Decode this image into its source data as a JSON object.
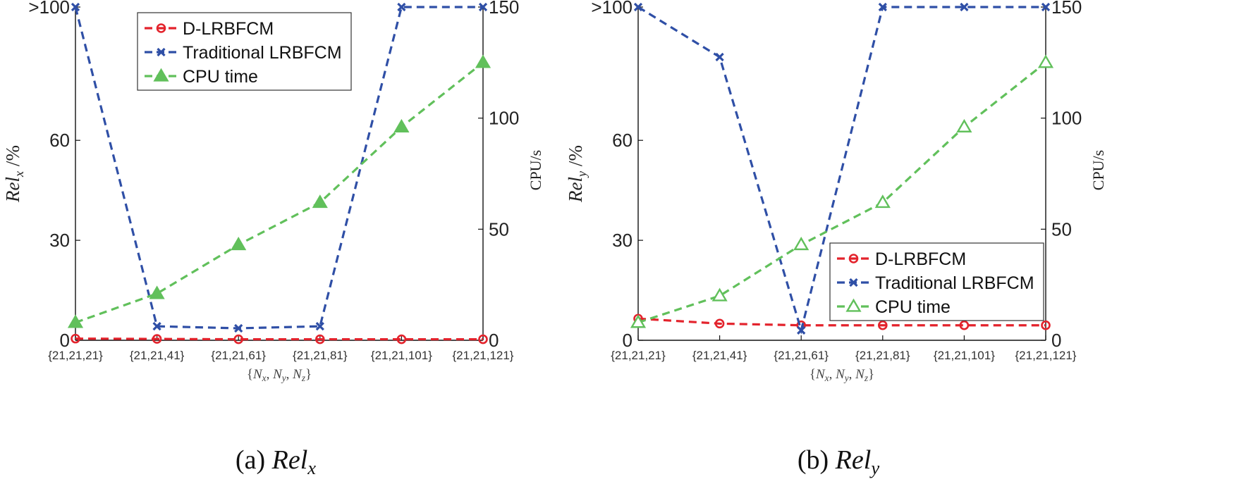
{
  "chart_data": [
    {
      "type": "line",
      "categories": [
        "{21,21,21}",
        "{21,21,41}",
        "{21,21,61}",
        "{21,21,81}",
        "{21,21,101}",
        "{21,21,121}"
      ],
      "xlabel": "{N_x, N_y, N_z}",
      "ylabel": "Rel_x /%",
      "y2label": "CPU/s",
      "ylim": [
        0,
        100
      ],
      "y_ticks": [
        0,
        30,
        60,
        100
      ],
      "y_tick_labels": [
        "0",
        "30",
        "60",
        ">100"
      ],
      "y2lim": [
        0,
        150
      ],
      "y2_ticks": [
        0,
        50,
        100,
        150
      ],
      "y2_tick_labels": [
        "0",
        "50",
        "100",
        "150"
      ],
      "legend_position": "top-center",
      "caption": {
        "prefix": "(a) ",
        "main": "Rel",
        "sub": "x"
      },
      "series": [
        {
          "name": "D-LRBFCM",
          "axis": "left",
          "color": "#e3232c",
          "marker": "circle",
          "values": [
            0.5,
            0.4,
            0.3,
            0.3,
            0.3,
            0.3
          ]
        },
        {
          "name": "Traditional LRBFCM",
          "axis": "left",
          "color": "#2f4fa6",
          "marker": "x",
          "values": [
            100,
            4.2,
            3.6,
            4.2,
            100,
            100
          ]
        },
        {
          "name": "CPU time",
          "axis": "right",
          "color": "#61c05b",
          "marker": "triangle-filled",
          "values": [
            8,
            21,
            43,
            62,
            96,
            125
          ]
        }
      ]
    },
    {
      "type": "line",
      "categories": [
        "{21,21,21}",
        "{21,21,41}",
        "{21,21,61}",
        "{21,21,81}",
        "{21,21,101}",
        "{21,21,121}"
      ],
      "xlabel": "{N_x, N_y, N_z}",
      "ylabel": "Rel_y /%",
      "y2label": "CPU/s",
      "ylim": [
        0,
        100
      ],
      "y_ticks": [
        0,
        30,
        60,
        100
      ],
      "y_tick_labels": [
        "0",
        "30",
        "60",
        ">100"
      ],
      "y2lim": [
        0,
        150
      ],
      "y2_ticks": [
        0,
        50,
        100,
        150
      ],
      "y2_tick_labels": [
        "0",
        "50",
        "100",
        "150"
      ],
      "legend_position": "lower-right",
      "caption": {
        "prefix": "(b) ",
        "main": "Rel",
        "sub": "y"
      },
      "series": [
        {
          "name": "D-LRBFCM",
          "axis": "left",
          "color": "#e3232c",
          "marker": "circle",
          "values": [
            6.5,
            5.0,
            4.5,
            4.5,
            4.5,
            4.5
          ]
        },
        {
          "name": "Traditional LRBFCM",
          "axis": "left",
          "color": "#2f4fa6",
          "marker": "x",
          "values": [
            100,
            85,
            3.0,
            100,
            100,
            100
          ]
        },
        {
          "name": "CPU time",
          "axis": "right",
          "color": "#61c05b",
          "marker": "triangle-open",
          "values": [
            8,
            20,
            43,
            62,
            96,
            125
          ]
        }
      ]
    }
  ]
}
